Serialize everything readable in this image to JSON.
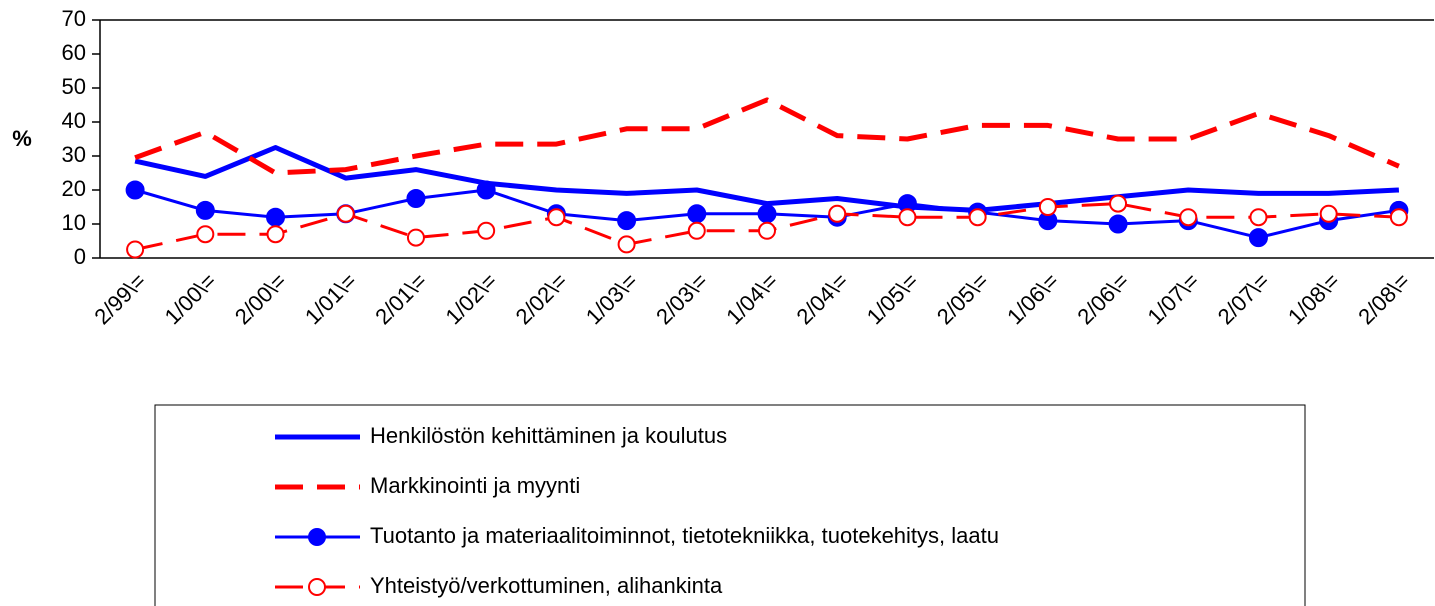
{
  "chart_data": {
    "type": "line",
    "ylabel": "%",
    "categories": [
      "2/99\\=",
      "1/00\\=",
      "2/00\\=",
      "1/01\\=",
      "2/01\\=",
      "1/02\\=",
      "2/02\\=",
      "1/03\\=",
      "2/03\\=",
      "1/04\\=",
      "2/04\\=",
      "1/05\\=",
      "2/05\\=",
      "1/06\\=",
      "2/06\\=",
      "1/07\\=",
      "2/07\\=",
      "1/08\\=",
      "2/08\\="
    ],
    "series": [
      {
        "name": "Henkilöstön kehittäminen ja koulutus",
        "color": "#0000ff",
        "dashed": false,
        "marker": "none",
        "values": [
          28.5,
          24,
          32.5,
          23.5,
          26,
          22,
          20,
          19,
          20,
          16,
          17.5,
          15,
          14,
          16,
          18,
          20,
          19,
          19,
          20
        ]
      },
      {
        "name": "Markkinointi ja myynti",
        "color": "#ff0000",
        "dashed": true,
        "marker": "none",
        "values": [
          29.5,
          37,
          25,
          26,
          30,
          33.5,
          33.5,
          38,
          38,
          46.5,
          36,
          35,
          39,
          39,
          35,
          35,
          42.5,
          36,
          27
        ]
      },
      {
        "name": "Tuotanto ja materiaalitoiminnot, tietotekniikka, tuotekehitys, laatu",
        "color": "#0000ff",
        "dashed": false,
        "marker": "filled",
        "values": [
          20,
          14,
          12,
          13,
          17.5,
          20,
          13,
          11,
          13,
          13,
          12,
          16,
          13.5,
          11,
          10,
          11,
          6,
          11,
          14
        ]
      },
      {
        "name": "Yhteistyö/verkottuminen, alihankinta",
        "color": "#ff0000",
        "dashed": true,
        "marker": "open",
        "values": [
          2.5,
          7,
          7,
          13,
          6,
          8,
          12,
          4,
          8,
          8,
          13,
          12,
          12,
          15,
          16,
          12,
          12,
          13,
          12
        ]
      }
    ],
    "ylim": [
      0,
      70
    ],
    "yticks": [
      0,
      10,
      20,
      30,
      40,
      50,
      60,
      70
    ],
    "grid": false
  }
}
